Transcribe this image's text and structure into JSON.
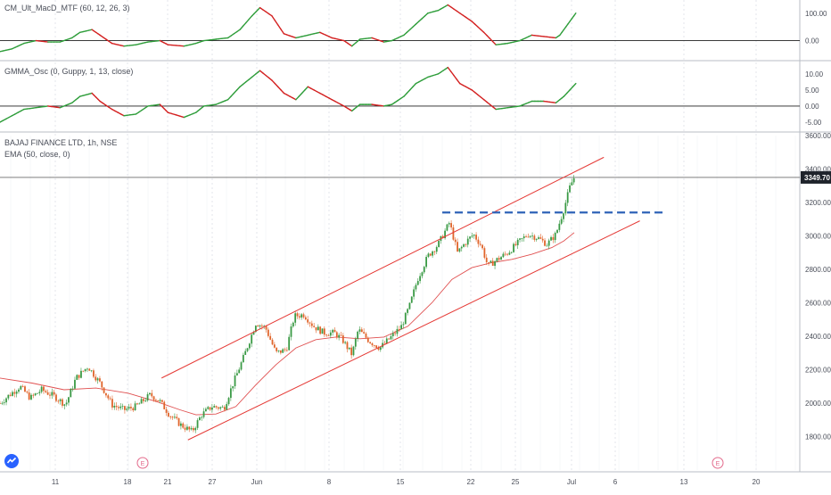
{
  "colors": {
    "up": "#2e9d3a",
    "down": "#d32020",
    "candle_up": "#3a9a45",
    "candle_down": "#e0642a",
    "ema": "#e05050",
    "channel": "#e53935",
    "resistance": "#2f63b8",
    "last_price_bg": "#1f232b",
    "grid": "#d7dbe3",
    "zero": "#1f1f1f",
    "earnings": "#e36a8b",
    "logo": "#2962ff"
  },
  "icons": {
    "logo": "tradingview-cloud-icon",
    "earnings": "earnings-marker-icon"
  },
  "chart_data": [
    {
      "type": "line",
      "title": "CM_Ult_MacD_MTF (60, 12, 26, 3)",
      "yticks": [
        "100.00",
        "0.00"
      ],
      "ylim": [
        -60,
        135
      ],
      "zero_line": 0,
      "colored_by_slope": true,
      "x_range": [
        0,
        1000
      ],
      "points": [
        [
          0,
          -40
        ],
        [
          15,
          -30
        ],
        [
          30,
          -10
        ],
        [
          45,
          0
        ],
        [
          60,
          -5
        ],
        [
          75,
          -5
        ],
        [
          90,
          10
        ],
        [
          100,
          30
        ],
        [
          115,
          40
        ],
        [
          125,
          20
        ],
        [
          140,
          -10
        ],
        [
          155,
          -20
        ],
        [
          170,
          -15
        ],
        [
          185,
          -5
        ],
        [
          200,
          0
        ],
        [
          210,
          -15
        ],
        [
          230,
          -20
        ],
        [
          245,
          -10
        ],
        [
          255,
          0
        ],
        [
          270,
          5
        ],
        [
          285,
          10
        ],
        [
          300,
          40
        ],
        [
          315,
          90
        ],
        [
          325,
          120
        ],
        [
          340,
          90
        ],
        [
          355,
          25
        ],
        [
          370,
          10
        ],
        [
          385,
          20
        ],
        [
          400,
          30
        ],
        [
          415,
          10
        ],
        [
          430,
          0
        ],
        [
          440,
          -20
        ],
        [
          450,
          5
        ],
        [
          465,
          10
        ],
        [
          480,
          -5
        ],
        [
          490,
          0
        ],
        [
          505,
          20
        ],
        [
          520,
          60
        ],
        [
          535,
          100
        ],
        [
          548,
          110
        ],
        [
          560,
          130
        ],
        [
          575,
          100
        ],
        [
          590,
          70
        ],
        [
          605,
          30
        ],
        [
          620,
          -15
        ],
        [
          635,
          -10
        ],
        [
          650,
          0
        ],
        [
          665,
          20
        ],
        [
          680,
          15
        ],
        [
          695,
          10
        ],
        [
          700,
          20
        ],
        [
          710,
          60
        ],
        [
          720,
          100
        ]
      ]
    },
    {
      "type": "line",
      "title": "GMMA_Osc (0, Guppy, 1, 13, close)",
      "yticks": [
        "10.00",
        "5.00",
        "0.00",
        "-5.00"
      ],
      "ylim": [
        -7.5,
        13
      ],
      "zero_line": 0,
      "colored_by_slope": true,
      "x_range": [
        0,
        1000
      ],
      "points": [
        [
          0,
          -5
        ],
        [
          15,
          -3
        ],
        [
          30,
          -1
        ],
        [
          45,
          -0.5
        ],
        [
          60,
          0
        ],
        [
          75,
          -0.5
        ],
        [
          90,
          1
        ],
        [
          100,
          3
        ],
        [
          115,
          4
        ],
        [
          125,
          1.5
        ],
        [
          140,
          -1
        ],
        [
          155,
          -3
        ],
        [
          170,
          -2.5
        ],
        [
          185,
          0
        ],
        [
          200,
          0.5
        ],
        [
          210,
          -2
        ],
        [
          230,
          -3.5
        ],
        [
          245,
          -2
        ],
        [
          255,
          0
        ],
        [
          270,
          0.5
        ],
        [
          285,
          2
        ],
        [
          300,
          6
        ],
        [
          315,
          9
        ],
        [
          325,
          11
        ],
        [
          340,
          8
        ],
        [
          355,
          4
        ],
        [
          370,
          2
        ],
        [
          385,
          6
        ],
        [
          400,
          4
        ],
        [
          415,
          2
        ],
        [
          430,
          0
        ],
        [
          440,
          -1.5
        ],
        [
          450,
          0.5
        ],
        [
          465,
          0.5
        ],
        [
          480,
          0
        ],
        [
          490,
          0.5
        ],
        [
          505,
          3
        ],
        [
          520,
          7
        ],
        [
          535,
          9
        ],
        [
          548,
          10
        ],
        [
          560,
          12
        ],
        [
          575,
          7
        ],
        [
          590,
          5
        ],
        [
          605,
          2
        ],
        [
          620,
          -1
        ],
        [
          635,
          -0.5
        ],
        [
          650,
          0
        ],
        [
          665,
          1.5
        ],
        [
          680,
          1.5
        ],
        [
          695,
          1
        ],
        [
          705,
          3
        ],
        [
          720,
          7
        ]
      ]
    },
    {
      "type": "candlestick",
      "title": "BAJAJ FINANCE LTD, 1h, NSE",
      "subtitle": "EMA (50, close, 0)",
      "ylim": [
        1600,
        3600
      ],
      "yticks": [
        "3600.00",
        "3400.00",
        "3200.00",
        "3000.00",
        "2800.00",
        "2600.00",
        "2400.00",
        "2200.00",
        "2000.00",
        "1800.00"
      ],
      "last_price": 3349.7,
      "last_price_label": "3349.70",
      "x_range": [
        0,
        1000
      ],
      "price_path": [
        [
          0,
          2000
        ],
        [
          12,
          2050
        ],
        [
          25,
          2100
        ],
        [
          38,
          2030
        ],
        [
          52,
          2080
        ],
        [
          68,
          2040
        ],
        [
          82,
          1990
        ],
        [
          95,
          2150
        ],
        [
          110,
          2220
        ],
        [
          125,
          2120
        ],
        [
          140,
          1990
        ],
        [
          155,
          1960
        ],
        [
          170,
          1980
        ],
        [
          188,
          2050
        ],
        [
          200,
          2010
        ],
        [
          212,
          1930
        ],
        [
          226,
          1870
        ],
        [
          240,
          1830
        ],
        [
          252,
          1930
        ],
        [
          265,
          1980
        ],
        [
          280,
          1970
        ],
        [
          290,
          2100
        ],
        [
          305,
          2280
        ],
        [
          320,
          2480
        ],
        [
          332,
          2450
        ],
        [
          345,
          2300
        ],
        [
          358,
          2320
        ],
        [
          368,
          2520
        ],
        [
          380,
          2530
        ],
        [
          392,
          2460
        ],
        [
          405,
          2420
        ],
        [
          418,
          2420
        ],
        [
          428,
          2380
        ],
        [
          440,
          2290
        ],
        [
          448,
          2440
        ],
        [
          462,
          2370
        ],
        [
          475,
          2330
        ],
        [
          490,
          2400
        ],
        [
          502,
          2460
        ],
        [
          512,
          2580
        ],
        [
          522,
          2740
        ],
        [
          535,
          2880
        ],
        [
          548,
          2950
        ],
        [
          562,
          3080
        ],
        [
          572,
          2900
        ],
        [
          582,
          2960
        ],
        [
          592,
          3010
        ],
        [
          602,
          2940
        ],
        [
          610,
          2820
        ],
        [
          622,
          2860
        ],
        [
          635,
          2900
        ],
        [
          648,
          2960
        ],
        [
          660,
          3010
        ],
        [
          672,
          2990
        ],
        [
          684,
          2950
        ],
        [
          695,
          3010
        ],
        [
          705,
          3160
        ],
        [
          713,
          3300
        ],
        [
          718,
          3350
        ]
      ],
      "ema_path": [
        [
          0,
          2150
        ],
        [
          40,
          2120
        ],
        [
          80,
          2080
        ],
        [
          120,
          2090
        ],
        [
          160,
          2060
        ],
        [
          195,
          2010
        ],
        [
          225,
          1960
        ],
        [
          245,
          1930
        ],
        [
          270,
          1935
        ],
        [
          295,
          1980
        ],
        [
          320,
          2110
        ],
        [
          345,
          2230
        ],
        [
          370,
          2330
        ],
        [
          395,
          2380
        ],
        [
          420,
          2395
        ],
        [
          450,
          2385
        ],
        [
          480,
          2395
        ],
        [
          510,
          2460
        ],
        [
          540,
          2600
        ],
        [
          565,
          2740
        ],
        [
          590,
          2810
        ],
        [
          615,
          2840
        ],
        [
          640,
          2860
        ],
        [
          665,
          2890
        ],
        [
          690,
          2930
        ],
        [
          705,
          2970
        ],
        [
          718,
          3020
        ]
      ],
      "channel_upper": {
        "from": [
          202,
          2150
        ],
        "to": [
          755,
          3470
        ]
      },
      "channel_lower": {
        "from": [
          235,
          1780
        ],
        "to": [
          800,
          3090
        ]
      },
      "resistance": {
        "from": [
          553,
          3140
        ],
        "to": [
          830,
          3140
        ]
      },
      "earnings_markers": [
        "E",
        "E"
      ],
      "earnings_x": [
        160,
        805
      ],
      "date_labels": [
        "11",
        "18",
        "21",
        "27",
        "Jun",
        "8",
        "15",
        "22",
        "25",
        "Jul",
        "6",
        "13",
        "20"
      ],
      "date_x": [
        62,
        143,
        188,
        238,
        288,
        369,
        449,
        528,
        578,
        641,
        690,
        767,
        848
      ]
    }
  ]
}
